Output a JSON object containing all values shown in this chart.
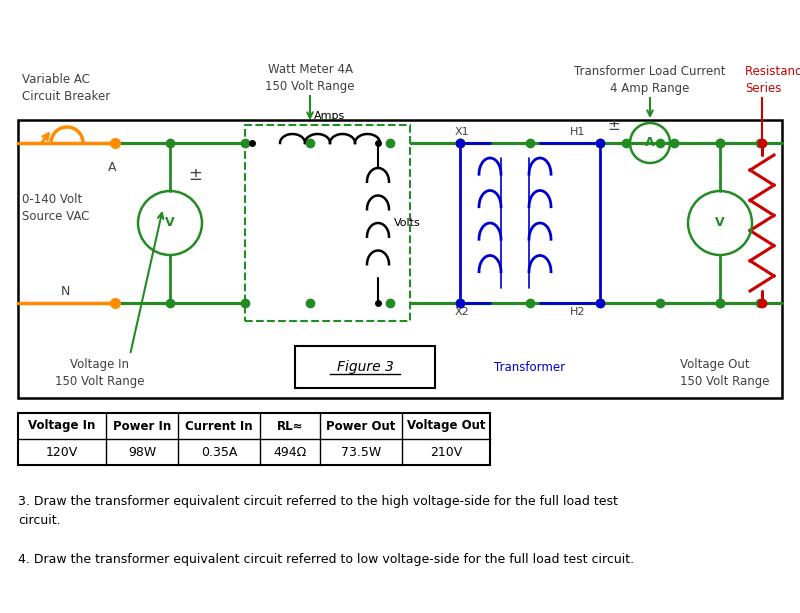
{
  "bg_color": "#ffffff",
  "table_headers": [
    "Voltage In",
    "Power In",
    "Current In",
    "RL≈",
    "Power Out",
    "Voltage Out"
  ],
  "table_row": [
    "120V",
    "98W",
    "0.35A",
    "494Ω",
    "73.5W",
    "210V"
  ],
  "text3": "3. Draw the transformer equivalent circuit referred to the high voltage-side for the full load test\ncircuit.",
  "text4": "4. Draw the transformer equivalent circuit referred to low voltage-side for the full load test circuit.",
  "label_variable_ac": "Variable AC\nCircuit Breaker",
  "label_watt_meter": "Watt Meter 4A\n150 Volt Range",
  "label_transformer_load": "Transformer Load Current\n4 Amp Range",
  "label_resistance_load": "Resistance Load\nSeries",
  "label_voltage_source": "0-140 Volt\nSource VAC",
  "label_voltage_in": "Voltage In\n150 Volt Range",
  "label_figure3": "Figure 3",
  "label_transformer": "Transformer",
  "label_voltage_out": "Voltage Out\n150 Volt Range",
  "label_A": "A",
  "label_N": "N",
  "color_green": "#228B22",
  "color_orange": "#FF8C00",
  "color_blue": "#0000CD",
  "color_red": "#CC0000",
  "color_dark": "#404040",
  "color_black": "#000000"
}
